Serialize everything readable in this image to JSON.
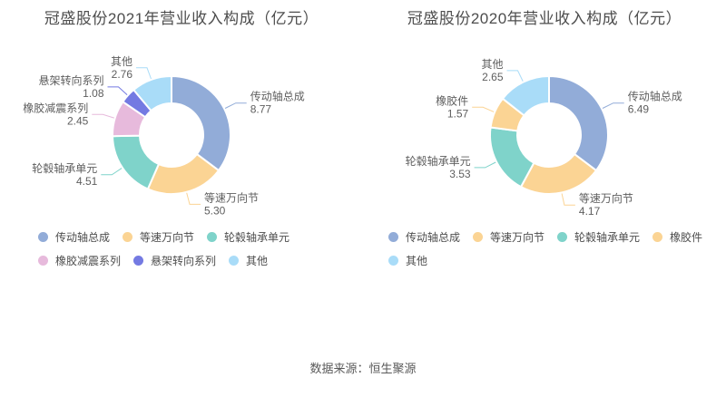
{
  "chart_data": [
    {
      "type": "pie",
      "subtype": "donut",
      "title": "冠盛股份2021年营业收入构成（亿元）",
      "units": "亿元",
      "legend_position": "bottom",
      "inner_radius_ratio": 0.54,
      "label_style": "outside callout with name and value",
      "categories": [
        "传动轴总成",
        "等速万向节",
        "轮毂轴承单元",
        "橡胶减震系列",
        "悬架转向系列",
        "其他"
      ],
      "values": [
        8.77,
        5.3,
        4.51,
        2.45,
        1.08,
        2.76
      ],
      "colors": [
        "#92ACD8",
        "#FBD494",
        "#7FD3CA",
        "#E7BADC",
        "#747AE2",
        "#A9DCF8"
      ]
    },
    {
      "type": "pie",
      "subtype": "donut",
      "title": "冠盛股份2020年营业收入构成（亿元）",
      "units": "亿元",
      "legend_position": "bottom",
      "inner_radius_ratio": 0.54,
      "label_style": "outside callout with name and value",
      "categories": [
        "传动轴总成",
        "等速万向节",
        "轮毂轴承单元",
        "橡胶件",
        "其他"
      ],
      "values": [
        6.49,
        4.17,
        3.53,
        1.57,
        2.65
      ],
      "colors": [
        "#92ACD8",
        "#FBD494",
        "#7FD3CA",
        "#FBD494",
        "#A9DCF8"
      ]
    }
  ],
  "footer": {
    "text": "数据来源：恒生聚源"
  }
}
